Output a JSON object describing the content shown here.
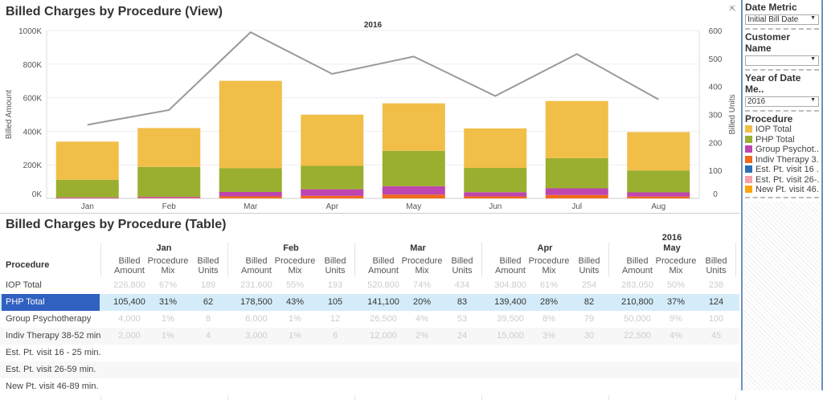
{
  "chart_title": "Billed Charges by Procedure (View)",
  "table_title": "Billed Charges by Procedure (Table)",
  "chart_data": {
    "type": "bar",
    "subtitle": "2016",
    "stacked": true,
    "categories": [
      "Jan",
      "Feb",
      "Mar",
      "Apr",
      "May",
      "Jun",
      "Jul",
      "Aug"
    ],
    "ylabel": "Billed Amount",
    "y2label": "Billed Units",
    "ylim": [
      0,
      1000000
    ],
    "y2lim": [
      0,
      600
    ],
    "yticks": [
      "0K",
      "200K",
      "400K",
      "600K",
      "800K",
      "1000K"
    ],
    "y2ticks": [
      "0",
      "100",
      "200",
      "300",
      "400",
      "500",
      "600"
    ],
    "series": [
      {
        "name": "Indiv Therapy 38-52 min",
        "color": "#f26a1b",
        "values": [
          2000,
          3000,
          12000,
          15000,
          22500,
          12000,
          20000,
          11000
        ]
      },
      {
        "name": "Group Psychotherapy",
        "color": "#bf45b0",
        "values": [
          4000,
          6000,
          26500,
          39500,
          50000,
          25000,
          40000,
          25000
        ]
      },
      {
        "name": "PHP Total",
        "color": "#9aaf2f",
        "values": [
          105400,
          178500,
          141100,
          139400,
          210800,
          145000,
          180000,
          130000
        ]
      },
      {
        "name": "IOP Total",
        "color": "#f1be48",
        "values": [
          226800,
          231600,
          520800,
          304800,
          283050,
          235000,
          340000,
          229000
        ]
      }
    ],
    "line": {
      "name": "Billed Units",
      "color": "#999999",
      "values": [
        263,
        316,
        594,
        445,
        507,
        366,
        516,
        354
      ]
    },
    "grid": true
  },
  "table": {
    "year": "2016",
    "row_header": "Procedure",
    "measures": [
      "Billed Amount",
      "Procedure Mix",
      "Billed Units"
    ],
    "months": [
      "Jan",
      "Feb",
      "Mar",
      "Apr",
      "May"
    ],
    "rows": [
      {
        "label": "IOP Total",
        "vals": [
          [
            "226,800",
            "67%",
            "189"
          ],
          [
            "231,600",
            "55%",
            "193"
          ],
          [
            "520,800",
            "74%",
            "434"
          ],
          [
            "304,800",
            "61%",
            "254"
          ],
          [
            "283,050",
            "50%",
            "238"
          ]
        ]
      },
      {
        "label": "PHP Total",
        "selected": true,
        "vals": [
          [
            "105,400",
            "31%",
            "62"
          ],
          [
            "178,500",
            "43%",
            "105"
          ],
          [
            "141,100",
            "20%",
            "83"
          ],
          [
            "139,400",
            "28%",
            "82"
          ],
          [
            "210,800",
            "37%",
            "124"
          ]
        ]
      },
      {
        "label": "Group Psychotherapy",
        "vals": [
          [
            "4,000",
            "1%",
            "8"
          ],
          [
            "6,000",
            "1%",
            "12"
          ],
          [
            "26,500",
            "4%",
            "53"
          ],
          [
            "39,500",
            "8%",
            "79"
          ],
          [
            "50,000",
            "9%",
            "100"
          ]
        ]
      },
      {
        "label": "Indiv Therapy 38-52 min",
        "vals": [
          [
            "2,000",
            "1%",
            "4"
          ],
          [
            "3,000",
            "1%",
            "6"
          ],
          [
            "12,000",
            "2%",
            "24"
          ],
          [
            "15,000",
            "3%",
            "30"
          ],
          [
            "22,500",
            "4%",
            "45"
          ]
        ]
      },
      {
        "label": "Est. Pt. visit 16 - 25 min.",
        "vals": []
      },
      {
        "label": "Est. Pt. visit 26-59 min.",
        "vals": []
      },
      {
        "label": "New Pt. visit 46-89 min.",
        "vals": []
      }
    ]
  },
  "filters": {
    "date_metric": {
      "label": "Date Metric",
      "value": "Initial Bill Date"
    },
    "customer": {
      "label": "Customer Name",
      "value": ""
    },
    "year": {
      "label": "Year of Date Me..",
      "value": "2016"
    }
  },
  "legend": {
    "title": "Procedure",
    "items": [
      {
        "label": "IOP Total",
        "color": "#f1be48"
      },
      {
        "label": "PHP Total",
        "color": "#9aaf2f"
      },
      {
        "label": "Group Psychot..",
        "color": "#bf45b0"
      },
      {
        "label": "Indiv Therapy 3..",
        "color": "#f26a1b"
      },
      {
        "label": "Est. Pt. visit 16 ..",
        "color": "#2a6fb5"
      },
      {
        "label": "Est. Pt. visit 26-..",
        "color": "#f7a0a8"
      },
      {
        "label": "New Pt. visit 46..",
        "color": "#fda50f"
      }
    ]
  }
}
